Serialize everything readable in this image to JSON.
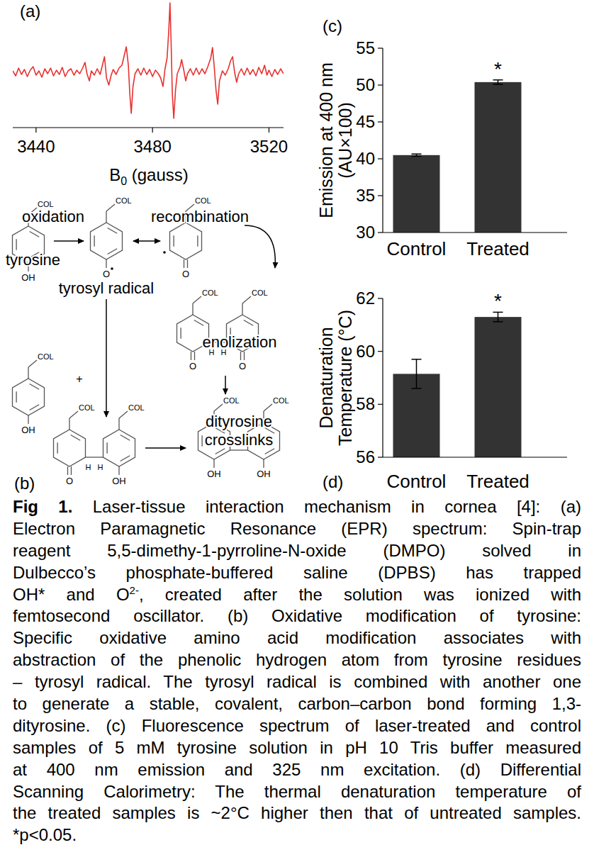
{
  "chart_data": [
    {
      "type": "line",
      "panel_label": "(a)",
      "x_label": {
        "base": "B",
        "subscript": "0",
        "unit": " (gauss)"
      },
      "x": [
        3432,
        3433,
        3434,
        3435,
        3436,
        3437,
        3438,
        3439,
        3440,
        3441,
        3442,
        3443,
        3444,
        3445,
        3446,
        3447,
        3448,
        3449,
        3450,
        3451,
        3452,
        3453,
        3454,
        3455,
        3456,
        3456.8,
        3457.5,
        3458.3,
        3459,
        3460,
        3461,
        3462,
        3462.8,
        3463.5,
        3464.2,
        3465,
        3465.8,
        3466.5,
        3467.5,
        3468.5,
        3469.5,
        3470.3,
        3471,
        3471.7,
        3472.2,
        3472.7,
        3473.3,
        3474,
        3475,
        3476,
        3477,
        3478,
        3479,
        3480,
        3481,
        3482,
        3482.8,
        3483.6,
        3484.3,
        3485,
        3485.6,
        3486,
        3486.4,
        3486.8,
        3487.3,
        3487.9,
        3488.5,
        3489.5,
        3490,
        3490.7,
        3491.4,
        3492,
        3493,
        3494,
        3495,
        3496,
        3497,
        3498,
        3499,
        3500,
        3500.6,
        3501.2,
        3501.8,
        3502.4,
        3503,
        3504,
        3505,
        3506,
        3506.8,
        3507.5,
        3508.2,
        3508.9,
        3509.6,
        3510.5,
        3511.5,
        3512.5,
        3513.5,
        3514.5,
        3515.5,
        3516.5,
        3517.5,
        3518.5,
        3519.3,
        3520,
        3521,
        3522,
        3523,
        3524,
        3525
      ],
      "y": [
        2,
        -5,
        6,
        -3,
        4,
        -6,
        3,
        8,
        -4,
        2,
        -7,
        5,
        -2,
        6,
        -5,
        3,
        -3,
        7,
        -6,
        2,
        5,
        -4,
        3,
        -2,
        6,
        14,
        -2,
        -12,
        2,
        -4,
        5,
        -3,
        10,
        22,
        -8,
        -18,
        -4,
        4,
        -3,
        6,
        10,
        24,
        36,
        10,
        -30,
        -58,
        -20,
        -2,
        5,
        -4,
        6,
        -3,
        4,
        -6,
        3,
        -2,
        -8,
        -20,
        5,
        20,
        60,
        98,
        40,
        -30,
        -65,
        -25,
        -2,
        8,
        18,
        4,
        -12,
        -2,
        5,
        -4,
        6,
        -3,
        5,
        -2,
        8,
        20,
        35,
        8,
        -25,
        -45,
        -12,
        2,
        -4,
        5,
        16,
        22,
        0,
        -14,
        -2,
        5,
        -4,
        6,
        -3,
        4,
        -5,
        7,
        -2,
        10,
        -4,
        3,
        -6,
        4,
        -3,
        5,
        -2
      ],
      "xlim": [
        3432,
        3525
      ],
      "xticks": [
        3440,
        3480,
        3520
      ],
      "ylim": [
        -75,
        100
      ],
      "color": "#e8312f",
      "grid": false,
      "tick_labels": "x"
    },
    {
      "type": "bar",
      "panel_label": "(c)",
      "y_label": [
        "Emission at 400 nm",
        "(AU×100)"
      ],
      "categories": [
        "Control",
        "Treated"
      ],
      "values": [
        40.5,
        50.4
      ],
      "errors": [
        0.15,
        0.3
      ],
      "ylim": [
        30,
        55
      ],
      "yticks": [
        30,
        35,
        40,
        45,
        50,
        55
      ],
      "color": "#333333",
      "grid": false,
      "annotations": [
        {
          "text": "*",
          "x": "Treated"
        }
      ]
    },
    {
      "type": "bar",
      "panel_label": "(d)",
      "y_label": [
        "Denaturation",
        "Temperature (°C)"
      ],
      "categories": [
        "Control",
        "Treated"
      ],
      "values": [
        59.15,
        61.3
      ],
      "errors": [
        0.55,
        0.18
      ],
      "ylim": [
        56,
        62
      ],
      "yticks": [
        56,
        58,
        60,
        62
      ],
      "color": "#333333",
      "grid": false,
      "annotations": [
        {
          "text": "*",
          "x": "Treated"
        }
      ]
    }
  ],
  "diagram": {
    "panel_label": "(b)",
    "residue": "COL",
    "hydroxyl": "OH",
    "oxygen": "O",
    "hydrogen": "H",
    "plus": "+",
    "steps": [
      "oxidation",
      "recombination",
      "enolization"
    ],
    "species": [
      "tyrosine",
      "tyrosyl radical"
    ],
    "product": [
      "dityrosine",
      "crosslinks"
    ]
  },
  "caption": {
    "lines": [
      [
        {
          "text": "Fig 1.",
          "bold": true
        },
        {
          "text": " Laser-tissue interaction mechanism in cornea [4]: (a)"
        }
      ],
      [
        {
          "text": "Electron Paramagnetic Resonance (EPR) spectrum: Spin-trap"
        }
      ],
      [
        {
          "text": "reagent 5,5-dimethy-1-pyrroline-N-oxide (DMPO) solved in"
        }
      ],
      [
        {
          "text": "Dulbecco’s phosphate-buffered saline (DPBS) has trapped"
        }
      ],
      [
        {
          "text": "OH* and O"
        },
        {
          "text": "2-",
          "sup": true
        },
        {
          "text": ", created after the solution was ionized with"
        }
      ],
      [
        {
          "text": "femtosecond oscillator. (b)  Oxidative modification of tyrosine:"
        }
      ],
      [
        {
          "text": "Specific oxidative amino acid modification associates with"
        }
      ],
      [
        {
          "text": "abstraction of the phenolic hydrogen atom from tyrosine residues"
        }
      ],
      [
        {
          "text": "– tyrosyl radical. The tyrosyl radical is combined with another one"
        }
      ],
      [
        {
          "text": "to generate a stable, covalent, carbon–carbon bond forming 1,3-"
        }
      ],
      [
        {
          "text": "dityrosine. (c) Fluorescence spectrum of laser-treated and control"
        }
      ],
      [
        {
          "text": "samples of 5 mM tyrosine solution in pH 10 Tris buffer measured"
        }
      ],
      [
        {
          "text": "at 400 nm emission and 325 nm excitation. (d) Differential"
        }
      ],
      [
        {
          "text": "Scanning Calorimetry: The thermal denaturation temperature of"
        }
      ],
      [
        {
          "text": "the treated samples is ~2°C higher then that of untreated samples."
        }
      ],
      [
        {
          "text": "*p<0.05."
        }
      ]
    ]
  }
}
